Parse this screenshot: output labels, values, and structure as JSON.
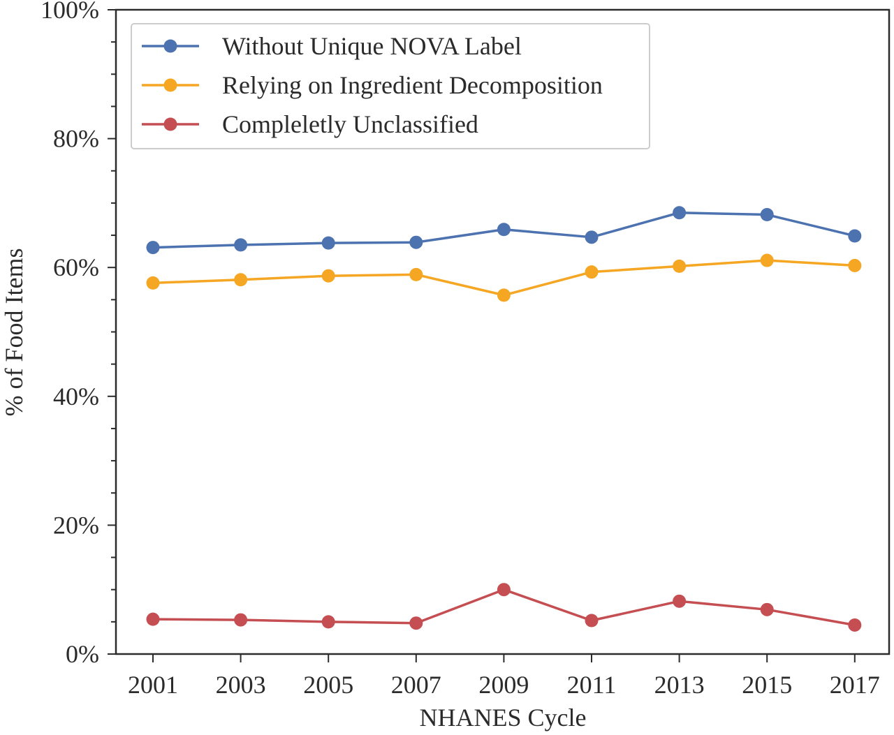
{
  "chart_data": {
    "type": "line",
    "xlabel": "NHANES Cycle",
    "ylabel": "% of Food Items",
    "categories": [
      "2001",
      "2003",
      "2005",
      "2007",
      "2009",
      "2011",
      "2013",
      "2015",
      "2017"
    ],
    "ylim": [
      0,
      100
    ],
    "yticks": [
      "0%",
      "20%",
      "40%",
      "60%",
      "80%",
      "100%"
    ],
    "grid": false,
    "legend_position": "top-left",
    "series": [
      {
        "name": "Without Unique NOVA Label",
        "color": "#4c72b0",
        "values": [
          63.1,
          63.5,
          63.8,
          63.9,
          65.9,
          64.7,
          68.5,
          68.2,
          64.9
        ]
      },
      {
        "name": "Relying on Ingredient Decomposition",
        "color": "#f5a623",
        "values": [
          57.6,
          58.1,
          58.7,
          58.9,
          55.7,
          59.3,
          60.2,
          61.1,
          60.3
        ]
      },
      {
        "name": "Compleletly Unclassified",
        "color": "#c44e52",
        "values": [
          5.4,
          5.3,
          5.0,
          4.8,
          10.0,
          5.2,
          8.2,
          6.9,
          4.5
        ]
      }
    ]
  }
}
